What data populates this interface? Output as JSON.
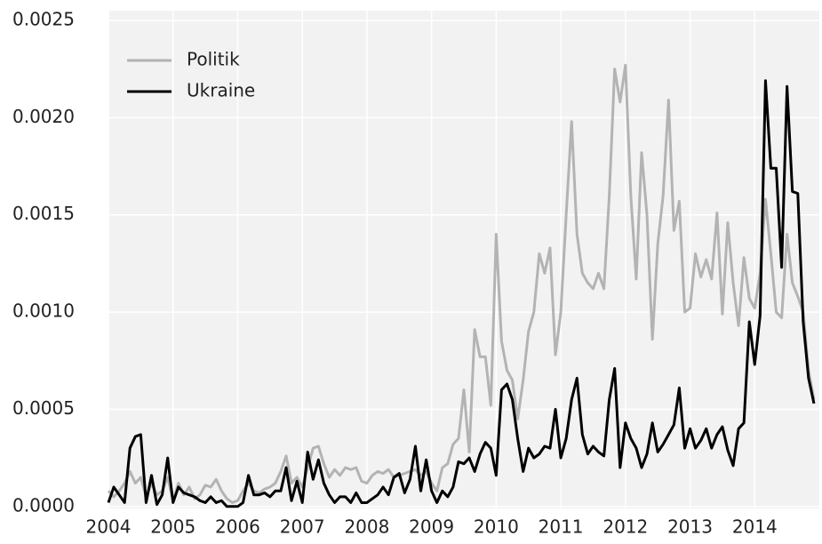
{
  "chart_data": {
    "type": "line",
    "x": [
      2004,
      2004.083,
      2004.167,
      2004.25,
      2004.333,
      2004.417,
      2004.5,
      2004.583,
      2004.667,
      2004.75,
      2004.833,
      2004.917,
      2005,
      2005.083,
      2005.167,
      2005.25,
      2005.333,
      2005.417,
      2005.5,
      2005.583,
      2005.667,
      2005.75,
      2005.833,
      2005.917,
      2006,
      2006.083,
      2006.167,
      2006.25,
      2006.333,
      2006.417,
      2006.5,
      2006.583,
      2006.667,
      2006.75,
      2006.833,
      2006.917,
      2007,
      2007.083,
      2007.167,
      2007.25,
      2007.333,
      2007.417,
      2007.5,
      2007.583,
      2007.667,
      2007.75,
      2007.833,
      2007.917,
      2008,
      2008.083,
      2008.167,
      2008.25,
      2008.333,
      2008.417,
      2008.5,
      2008.583,
      2008.667,
      2008.75,
      2008.833,
      2008.917,
      2009,
      2009.083,
      2009.167,
      2009.25,
      2009.333,
      2009.417,
      2009.5,
      2009.583,
      2009.667,
      2009.75,
      2009.833,
      2009.917,
      2010,
      2010.083,
      2010.167,
      2010.25,
      2010.333,
      2010.417,
      2010.5,
      2010.583,
      2010.667,
      2010.75,
      2010.833,
      2010.917,
      2011,
      2011.083,
      2011.167,
      2011.25,
      2011.333,
      2011.417,
      2011.5,
      2011.583,
      2011.667,
      2011.75,
      2011.833,
      2011.917,
      2012,
      2012.083,
      2012.167,
      2012.25,
      2012.333,
      2012.417,
      2012.5,
      2012.583,
      2012.667,
      2012.75,
      2012.833,
      2012.917,
      2013,
      2013.083,
      2013.167,
      2013.25,
      2013.333,
      2013.417,
      2013.5,
      2013.583,
      2013.667,
      2013.75,
      2013.833,
      2013.917,
      2014,
      2014.083,
      2014.167,
      2014.25,
      2014.333,
      2014.417,
      2014.5,
      2014.583,
      2014.667,
      2014.75,
      2014.833,
      2014.917
    ],
    "series": [
      {
        "name": "Politik",
        "color": "#b3b3b3",
        "values": [
          8e-05,
          5e-05,
          8e-05,
          0.00012,
          0.00018,
          0.00012,
          0.00015,
          5e-05,
          0.00012,
          6e-05,
          8e-05,
          0.00015,
          3e-05,
          0.00012,
          6e-05,
          0.0001,
          4e-05,
          6e-05,
          0.00011,
          0.0001,
          0.00014,
          8e-05,
          4e-05,
          2e-05,
          3e-05,
          8e-05,
          0.00012,
          8e-05,
          7e-05,
          9e-05,
          0.0001,
          0.00012,
          0.00018,
          0.00026,
          0.00012,
          0.00015,
          0.0001,
          0.0002,
          0.0003,
          0.00031,
          0.00022,
          0.00015,
          0.00019,
          0.00016,
          0.0002,
          0.00019,
          0.0002,
          0.00013,
          0.00012,
          0.00016,
          0.00018,
          0.00017,
          0.00019,
          0.00015,
          0.00016,
          0.00017,
          0.00018,
          0.00019,
          0.00016,
          0.00018,
          0.00012,
          8e-05,
          0.0002,
          0.00022,
          0.00032,
          0.00035,
          0.0006,
          0.00028,
          0.00091,
          0.00077,
          0.00077,
          0.00052,
          0.0014,
          0.00085,
          0.0007,
          0.00065,
          0.00045,
          0.00065,
          0.0009,
          0.001,
          0.0013,
          0.0012,
          0.00133,
          0.00078,
          0.001,
          0.0015,
          0.00198,
          0.0014,
          0.0012,
          0.00115,
          0.00112,
          0.0012,
          0.00112,
          0.0016,
          0.00225,
          0.00208,
          0.00227,
          0.0016,
          0.00117,
          0.00182,
          0.0015,
          0.00086,
          0.00135,
          0.0016,
          0.00209,
          0.00142,
          0.00157,
          0.001,
          0.00102,
          0.0013,
          0.00118,
          0.00127,
          0.00117,
          0.00151,
          0.00099,
          0.00146,
          0.00115,
          0.00093,
          0.00128,
          0.00107,
          0.00102,
          0.0012,
          0.00158,
          0.0013,
          0.001,
          0.00097,
          0.0014,
          0.00115,
          0.00108,
          0.001,
          0.0007,
          0.00055
        ]
      },
      {
        "name": "Ukraine",
        "color": "#000000",
        "values": [
          2e-05,
          0.0001,
          6e-05,
          2e-05,
          0.0003,
          0.00036,
          0.00037,
          2e-05,
          0.00016,
          1e-05,
          6e-05,
          0.00025,
          2e-05,
          0.0001,
          7e-05,
          6e-05,
          5e-05,
          3e-05,
          2e-05,
          5e-05,
          2e-05,
          3e-05,
          0,
          0,
          0,
          2e-05,
          0.00016,
          6e-05,
          6e-05,
          7e-05,
          5e-05,
          8e-05,
          8e-05,
          0.0002,
          3e-05,
          0.00013,
          2e-05,
          0.00028,
          0.00014,
          0.00024,
          0.00012,
          6e-05,
          2e-05,
          5e-05,
          5e-05,
          2e-05,
          7e-05,
          2e-05,
          2e-05,
          4e-05,
          6e-05,
          0.0001,
          6e-05,
          0.00015,
          0.00017,
          7e-05,
          0.00014,
          0.00031,
          8e-05,
          0.00024,
          8e-05,
          2e-05,
          8e-05,
          5e-05,
          0.0001,
          0.00023,
          0.00022,
          0.00025,
          0.00018,
          0.00027,
          0.00033,
          0.0003,
          0.00016,
          0.0006,
          0.00063,
          0.00055,
          0.00035,
          0.00018,
          0.0003,
          0.00025,
          0.00027,
          0.00031,
          0.0003,
          0.0005,
          0.00025,
          0.00035,
          0.00055,
          0.00066,
          0.00037,
          0.00027,
          0.00031,
          0.00028,
          0.00026,
          0.00055,
          0.00071,
          0.0002,
          0.00043,
          0.00035,
          0.0003,
          0.0002,
          0.00027,
          0.00043,
          0.00028,
          0.00032,
          0.00037,
          0.00042,
          0.00061,
          0.0003,
          0.0004,
          0.0003,
          0.00034,
          0.0004,
          0.0003,
          0.00037,
          0.00041,
          0.00029,
          0.00021,
          0.0004,
          0.00043,
          0.00095,
          0.00073,
          0.00098,
          0.00219,
          0.00174,
          0.00174,
          0.00123,
          0.00216,
          0.00162,
          0.00161,
          0.00095,
          0.00066,
          0.00053
        ]
      }
    ],
    "xlim": [
      2004,
      2015
    ],
    "xticks": [
      2004,
      2005,
      2006,
      2007,
      2008,
      2009,
      2010,
      2011,
      2012,
      2013,
      2014
    ],
    "ylim": [
      -1e-05,
      0.00255
    ],
    "yticks": [
      {
        "value": 0,
        "label": "0.0000"
      },
      {
        "value": 0.0005,
        "label": "0.0005"
      },
      {
        "value": 0.001,
        "label": "0.0010"
      },
      {
        "value": 0.0015,
        "label": "0.0015"
      },
      {
        "value": 0.002,
        "label": "0.0020"
      },
      {
        "value": 0.0025,
        "label": "0.0025"
      }
    ],
    "grid": true,
    "legend": "upper left"
  }
}
